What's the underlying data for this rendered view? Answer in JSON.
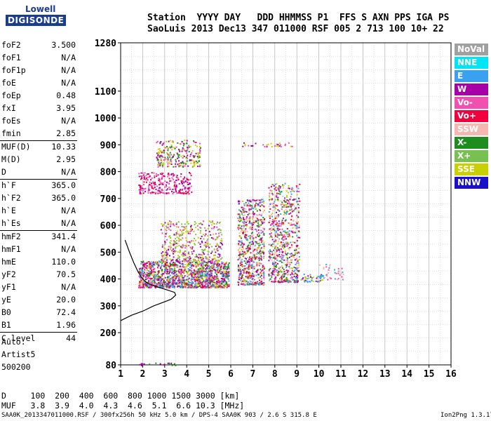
{
  "logo": {
    "line1": "Lowell",
    "line2": "DIGISONDE"
  },
  "header": {
    "labels": "Station  YYYY DAY   DDD HHMMSS P1  FFS S AXN PPS IGA PS",
    "values": "SaoLuis 2013 Dec13 347 011000 RSF 005 2 713 100 10+ 22"
  },
  "params": {
    "group1": [
      {
        "name": "foF2",
        "value": "3.500"
      },
      {
        "name": "foF1",
        "value": "N/A"
      },
      {
        "name": "foF1p",
        "value": "N/A"
      },
      {
        "name": "foE",
        "value": "N/A"
      },
      {
        "name": "foEp",
        "value": "0.48"
      },
      {
        "name": "fxI",
        "value": "3.95"
      },
      {
        "name": "foEs",
        "value": "N/A"
      },
      {
        "name": "fmin",
        "value": "2.85"
      }
    ],
    "group2": [
      {
        "name": "MUF(D)",
        "value": "10.33"
      },
      {
        "name": "M(D)",
        "value": "2.95"
      },
      {
        "name": "D",
        "value": "N/A"
      }
    ],
    "group3": [
      {
        "name": "h`F",
        "value": "365.0"
      },
      {
        "name": "h`F2",
        "value": "365.0"
      },
      {
        "name": "h`E",
        "value": "N/A"
      },
      {
        "name": "h`Es",
        "value": "N/A"
      }
    ],
    "group4": [
      {
        "name": "hmF2",
        "value": "341.4"
      },
      {
        "name": "hmF1",
        "value": "N/A"
      },
      {
        "name": "hmE",
        "value": "110.0"
      },
      {
        "name": "yF2",
        "value": "70.5"
      },
      {
        "name": "yF1",
        "value": "N/A"
      },
      {
        "name": "yE",
        "value": "20.0"
      },
      {
        "name": "B0",
        "value": "72.4"
      },
      {
        "name": "B1",
        "value": "1.96"
      }
    ],
    "group5": [
      {
        "name": "C-level",
        "value": "44"
      }
    ]
  },
  "auto": {
    "line1": "Auto:",
    "line2": "Artist5",
    "line3": "500200"
  },
  "legend": [
    {
      "label": "NoVal",
      "color": "#a0a0a0"
    },
    {
      "label": "NNE",
      "color": "#00e5f5"
    },
    {
      "label": "E",
      "color": "#3aa0f0"
    },
    {
      "label": "W",
      "color": "#a800a8"
    },
    {
      "label": "Vo-",
      "color": "#f050b0"
    },
    {
      "label": "Vo+",
      "color": "#f0003c"
    },
    {
      "label": "SSW",
      "color": "#f5b8b0"
    },
    {
      "label": "X-",
      "color": "#1e8c1e"
    },
    {
      "label": "X+",
      "color": "#78c050"
    },
    {
      "label": "SSE",
      "color": "#c8d000"
    },
    {
      "label": "NNW",
      "color": "#1a10c8"
    }
  ],
  "dtable": {
    "row1": "D     100  200  400  600  800 1000 1500 3000 [km]",
    "row2": "MUF   3.8  3.9  4.0  4.3  4.6  5.1  6.6 10.3 [MHz]"
  },
  "footer": "SAA0K_2013347011000.RSF / 300fx256h 50 kHz 5.0 km / DPS-4 SAA0K 903 / 2.6 S 315.8 E",
  "version": "Ion2Png 1.3.17",
  "chart_data": {
    "type": "scatter",
    "xlim": [
      1,
      16
    ],
    "ylim": [
      80,
      1280
    ],
    "x_ticks": [
      1,
      2,
      3,
      4,
      5,
      6,
      7,
      8,
      9,
      10,
      11,
      12,
      13,
      14,
      15,
      16
    ],
    "y_ticks": [
      80,
      200,
      300,
      400,
      500,
      600,
      700,
      800,
      900,
      1000,
      1100,
      1280
    ],
    "grid": true,
    "legend_placement": "right",
    "profile": [
      [
        1.0,
        245
      ],
      [
        1.5,
        265
      ],
      [
        2.0,
        280
      ],
      [
        2.5,
        300
      ],
      [
        3.0,
        315
      ],
      [
        3.3,
        325
      ],
      [
        3.5,
        340
      ],
      [
        3.45,
        350
      ],
      [
        3.0,
        362
      ],
      [
        2.6,
        372
      ],
      [
        2.2,
        385
      ],
      [
        2.0,
        400
      ],
      [
        1.8,
        425
      ],
      [
        1.6,
        460
      ],
      [
        1.4,
        500
      ],
      [
        1.2,
        545
      ]
    ],
    "clusters": [
      {
        "x": [
          1.8,
          5.9
        ],
        "y": [
          370,
          470
        ],
        "n": 1400,
        "colors": [
          "#a800a8",
          "#f050b0",
          "#f0003c",
          "#c8d000",
          "#1e8c1e",
          "#3aa0f0"
        ]
      },
      {
        "x": [
          1.8,
          4.2
        ],
        "y": [
          720,
          800
        ],
        "n": 260,
        "colors": [
          "#a800a8",
          "#f050b0",
          "#f0003c"
        ]
      },
      {
        "x": [
          2.6,
          4.6
        ],
        "y": [
          820,
          920
        ],
        "n": 240,
        "colors": [
          "#c8d000",
          "#a800a8",
          "#f050b0",
          "#1e8c1e"
        ]
      },
      {
        "x": [
          2.8,
          5.6
        ],
        "y": [
          470,
          620
        ],
        "n": 420,
        "colors": [
          "#c8d000",
          "#a800a8",
          "#f050b0",
          "#78c050"
        ]
      },
      {
        "x": [
          6.3,
          7.5
        ],
        "y": [
          380,
          700
        ],
        "n": 700,
        "colors": [
          "#c8d000",
          "#a800a8",
          "#f050b0",
          "#f0003c",
          "#3aa0f0",
          "#1e8c1e",
          "#f5b8b0"
        ]
      },
      {
        "x": [
          7.7,
          9.1
        ],
        "y": [
          390,
          760
        ],
        "n": 700,
        "colors": [
          "#f5b8b0",
          "#f050b0",
          "#a800a8",
          "#3aa0f0",
          "#c8d000",
          "#f0003c",
          "#1e8c1e"
        ]
      },
      {
        "x": [
          8.9,
          10.2
        ],
        "y": [
          390,
          420
        ],
        "n": 60,
        "colors": [
          "#3aa0f0",
          "#c8d000",
          "#a800a8"
        ]
      },
      {
        "x": [
          10.0,
          11.2
        ],
        "y": [
          400,
          460
        ],
        "n": 40,
        "colors": [
          "#f050b0",
          "#3aa0f0",
          "#f5b8b0"
        ]
      },
      {
        "x": [
          6.5,
          8.8
        ],
        "y": [
          895,
          910
        ],
        "n": 30,
        "colors": [
          "#f050b0",
          "#a800a8",
          "#c8d000"
        ]
      },
      {
        "x": [
          1.7,
          3.5
        ],
        "y": [
          80,
          90
        ],
        "n": 20,
        "colors": [
          "#1e8c1e",
          "#a800a8"
        ]
      }
    ]
  }
}
